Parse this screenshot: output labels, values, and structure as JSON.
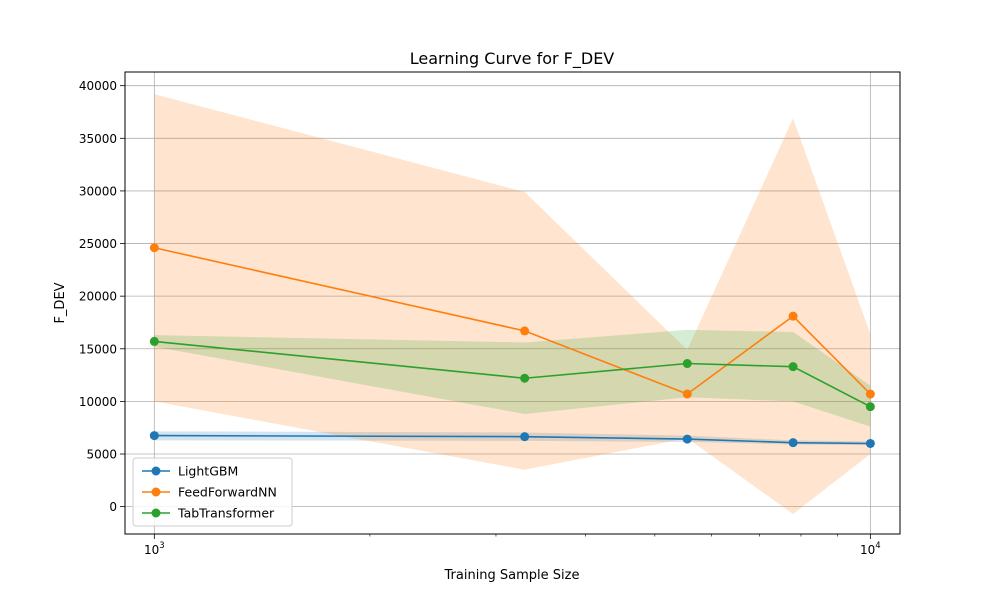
{
  "chart_data": {
    "type": "line",
    "title": "Learning Curve for F_DEV",
    "xlabel": "Training Sample Size",
    "ylabel": "F_DEV",
    "xscale": "log",
    "xlim": [
      910,
      11000
    ],
    "ylim": [
      -2600,
      41300
    ],
    "grid": true,
    "legend_position": "lower-left",
    "x_ticks": [
      {
        "value": 1000,
        "base": "10",
        "exp": "3"
      },
      {
        "value": 10000,
        "base": "10",
        "exp": "4"
      }
    ],
    "y_ticks": [
      0,
      5000,
      10000,
      15000,
      20000,
      25000,
      30000,
      35000,
      40000
    ],
    "x": [
      1000,
      3290,
      5550,
      7800,
      10000
    ],
    "series": [
      {
        "name": "LightGBM",
        "color": "#1f77b4",
        "values": [
          6750,
          6650,
          6420,
          6080,
          6000
        ],
        "band_lower": [
          6300,
          6250,
          6150,
          5900,
          5850
        ],
        "band_upper": [
          7150,
          7050,
          6750,
          6300,
          6200
        ]
      },
      {
        "name": "FeedForwardNN",
        "color": "#ff7f0e",
        "values": [
          24600,
          16700,
          10700,
          18100,
          10700
        ],
        "band_lower": [
          10000,
          3500,
          6500,
          -700,
          5000
        ],
        "band_upper": [
          39200,
          29900,
          14900,
          36900,
          16400
        ]
      },
      {
        "name": "TabTransformer",
        "color": "#2ca02c",
        "values": [
          15700,
          12200,
          13600,
          13300,
          9500
        ],
        "band_lower": [
          15200,
          8800,
          10400,
          10000,
          7600
        ],
        "band_upper": [
          16300,
          15600,
          16800,
          16600,
          11500
        ]
      }
    ]
  }
}
